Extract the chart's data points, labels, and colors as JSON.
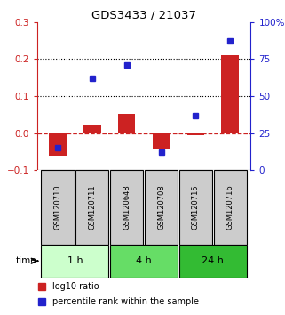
{
  "title": "GDS3433 / 21037",
  "samples": [
    "GSM120710",
    "GSM120711",
    "GSM120648",
    "GSM120708",
    "GSM120715",
    "GSM120716"
  ],
  "log10_ratio": [
    -0.062,
    0.02,
    0.052,
    -0.042,
    -0.005,
    0.21
  ],
  "percentile_rank": [
    15,
    62,
    71,
    12,
    37,
    87
  ],
  "left_ylim": [
    -0.1,
    0.3
  ],
  "right_ylim": [
    0,
    100
  ],
  "left_yticks": [
    -0.1,
    0.0,
    0.1,
    0.2,
    0.3
  ],
  "right_yticks": [
    0,
    25,
    50,
    75,
    100
  ],
  "dotted_lines": [
    0.1,
    0.2
  ],
  "bar_color": "#cc2222",
  "scatter_color": "#2222cc",
  "time_groups": [
    {
      "label": "1 h",
      "cols": [
        0,
        1
      ],
      "color": "#ccffcc"
    },
    {
      "label": "4 h",
      "cols": [
        2,
        3
      ],
      "color": "#66dd66"
    },
    {
      "label": "24 h",
      "cols": [
        4,
        5
      ],
      "color": "#33bb33"
    }
  ],
  "left_axis_color": "#cc2222",
  "right_axis_color": "#2222cc",
  "legend_bar_label": "log10 ratio",
  "legend_scatter_label": "percentile rank within the sample",
  "bar_width": 0.5,
  "sample_box_color": "#cccccc",
  "bg_color": "#ffffff"
}
